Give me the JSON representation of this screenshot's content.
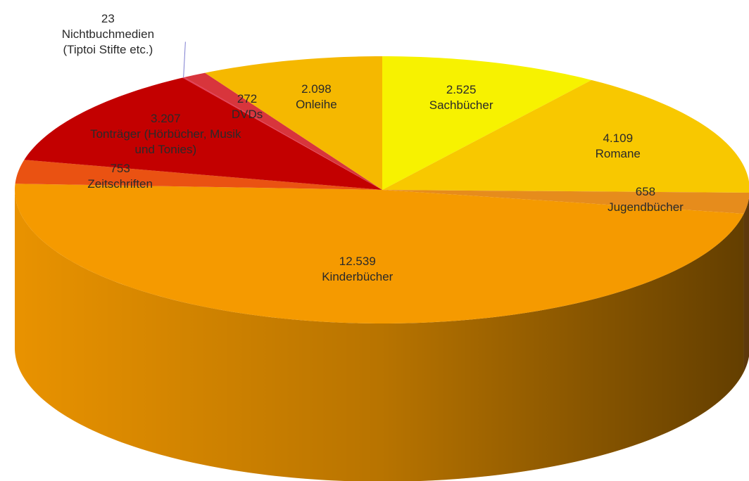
{
  "chart_data": {
    "type": "pie",
    "categories": [
      "Sachbücher",
      "Romane",
      "Jugendbücher",
      "Kinderbücher",
      "Zeitschriften",
      "Tonträger (Hörbücher, Musik und Tonies)",
      "Nichtbuchmedien (Tiptoi Stifte etc.)",
      "DVDs",
      "Onleihe"
    ],
    "values": [
      2525,
      4109,
      658,
      12539,
      753,
      3207,
      23,
      272,
      2098
    ],
    "value_labels": [
      "2.525",
      "4.109",
      "658",
      "12.539",
      "753",
      "3.207",
      "23",
      "272",
      "2.098"
    ],
    "colors": [
      "#f7f200",
      "#f8c800",
      "#e68c1c",
      "#f59a00",
      "#ea5212",
      "#c30000",
      "#e23a55",
      "#d8353c",
      "#f5b800"
    ]
  }
}
